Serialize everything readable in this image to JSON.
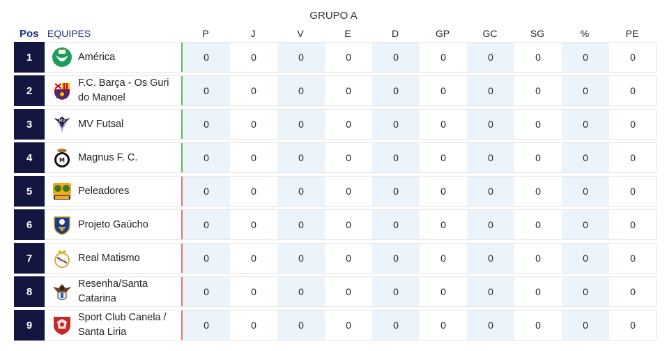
{
  "group_title": "GRUPO A",
  "columns": {
    "pos": "Pos",
    "team": "EQUIPES",
    "stats": [
      "P",
      "J",
      "V",
      "E",
      "D",
      "GP",
      "GC",
      "SG",
      "%",
      "PE"
    ]
  },
  "teams": [
    {
      "pos": "1",
      "name": "América",
      "logo": "america-logo",
      "zone": "green",
      "stats": [
        "0",
        "0",
        "0",
        "0",
        "0",
        "0",
        "0",
        "0",
        "0",
        "0"
      ]
    },
    {
      "pos": "2",
      "name": "F.C. Barça - Os Guri do Manoel",
      "logo": "barca-logo",
      "zone": "green",
      "stats": [
        "0",
        "0",
        "0",
        "0",
        "0",
        "0",
        "0",
        "0",
        "0",
        "0"
      ]
    },
    {
      "pos": "3",
      "name": "MV Futsal",
      "logo": "mv-futsal-logo",
      "zone": "green",
      "stats": [
        "0",
        "0",
        "0",
        "0",
        "0",
        "0",
        "0",
        "0",
        "0",
        "0"
      ]
    },
    {
      "pos": "4",
      "name": "Magnus F. C.",
      "logo": "magnus-logo",
      "zone": "green",
      "stats": [
        "0",
        "0",
        "0",
        "0",
        "0",
        "0",
        "0",
        "0",
        "0",
        "0"
      ]
    },
    {
      "pos": "5",
      "name": "Peleadores",
      "logo": "peleadores-logo",
      "zone": "red",
      "stats": [
        "0",
        "0",
        "0",
        "0",
        "0",
        "0",
        "0",
        "0",
        "0",
        "0"
      ]
    },
    {
      "pos": "6",
      "name": "Projeto Gaúcho",
      "logo": "projeto-gaucho-logo",
      "zone": "red",
      "stats": [
        "0",
        "0",
        "0",
        "0",
        "0",
        "0",
        "0",
        "0",
        "0",
        "0"
      ]
    },
    {
      "pos": "7",
      "name": "Real Matismo",
      "logo": "real-matismo-logo",
      "zone": "red",
      "stats": [
        "0",
        "0",
        "0",
        "0",
        "0",
        "0",
        "0",
        "0",
        "0",
        "0"
      ]
    },
    {
      "pos": "8",
      "name": "Resenha/Santa Catarina",
      "logo": "resenha-logo",
      "zone": "red",
      "stats": [
        "0",
        "0",
        "0",
        "0",
        "0",
        "0",
        "0",
        "0",
        "0",
        "0"
      ]
    },
    {
      "pos": "9",
      "name": "Sport Club Canela / Santa Liria",
      "logo": "sport-club-canela-logo",
      "zone": "red",
      "stats": [
        "0",
        "0",
        "0",
        "0",
        "0",
        "0",
        "0",
        "0",
        "0",
        "0"
      ]
    }
  ],
  "colors": {
    "pos_bg": "#131640",
    "header_blue": "#1d2d7a",
    "shade": "#ebf4fb",
    "zone_green": "#5cb85c",
    "zone_red": "#e57373"
  }
}
